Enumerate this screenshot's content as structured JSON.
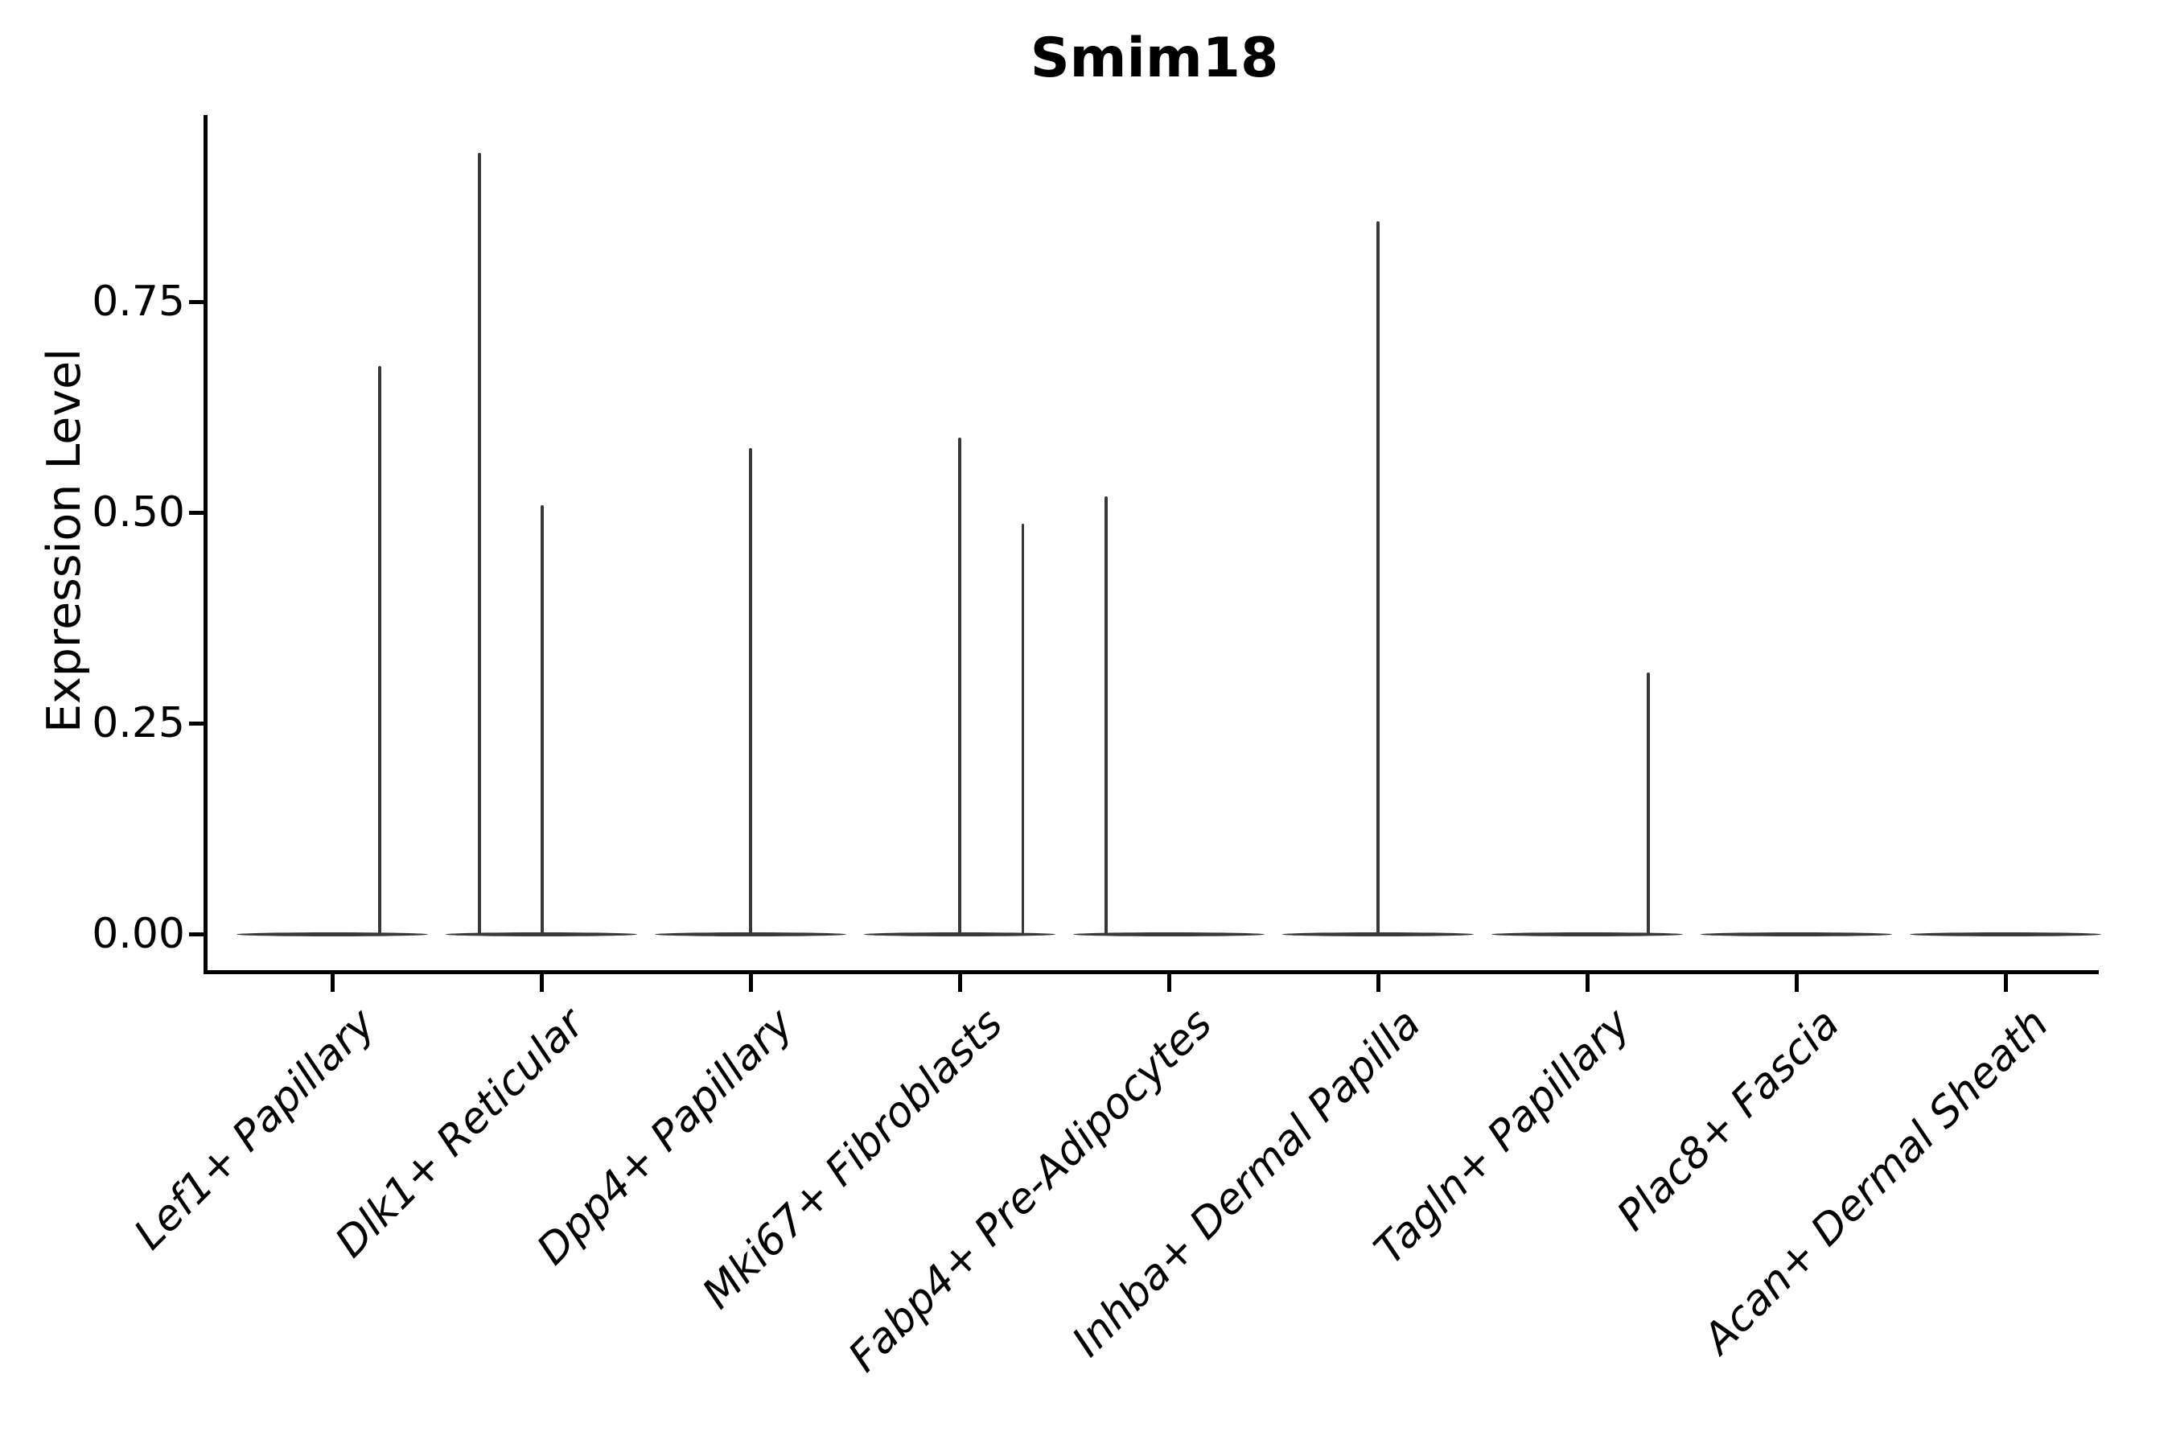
{
  "chart_data": {
    "type": "violin",
    "title": "Smim18",
    "xlabel": "",
    "ylabel": "Expression Level",
    "ytick_labels": [
      "0.00",
      "0.25",
      "0.50",
      "0.75"
    ],
    "ytick_values": [
      0,
      0.25,
      0.5,
      0.75
    ],
    "ylim": [
      -0.045,
      0.97
    ],
    "grid": false,
    "legend": "none",
    "categories": [
      "Lef1+ Papillary",
      "Dlk1+ Reticular",
      "Dpp4+ Papillary",
      "Mki67+ Fibroblasts",
      "Fabp4+ Pre-Adipocytes",
      "Inhba+ Dermal Papilla",
      "Tagln+ Papillary",
      "Plac8+ Fascia",
      "Acan+ Dermal Sheath"
    ],
    "violins": [
      {
        "category": "Lef1+ Papillary",
        "zero_mass_baseline": true,
        "spikes": [
          {
            "offset": 0.227,
            "value": 0.674
          }
        ]
      },
      {
        "category": "Dlk1+ Reticular",
        "zero_mass_baseline": true,
        "spikes": [
          {
            "offset": -0.297,
            "value": 0.927
          },
          {
            "offset": 0.003,
            "value": 0.509
          }
        ]
      },
      {
        "category": "Dpp4+ Papillary",
        "zero_mass_baseline": true,
        "spikes": [
          {
            "offset": 0.0,
            "value": 0.576
          }
        ]
      },
      {
        "category": "Mki67+ Fibroblasts",
        "zero_mass_baseline": true,
        "spikes": [
          {
            "offset": 0.0,
            "value": 0.589
          },
          {
            "offset": 0.302,
            "value": 0.487
          }
        ]
      },
      {
        "category": "Fabp4+ Pre-Adipocytes",
        "zero_mass_baseline": true,
        "spikes": [
          {
            "offset": -0.3,
            "value": 0.519
          }
        ]
      },
      {
        "category": "Inhba+ Dermal Papilla",
        "zero_mass_baseline": true,
        "spikes": [
          {
            "offset": 0.0,
            "value": 0.845
          }
        ]
      },
      {
        "category": "Tagln+ Papillary",
        "zero_mass_baseline": true,
        "spikes": [
          {
            "offset": 0.293,
            "value": 0.31
          }
        ]
      },
      {
        "category": "Plac8+ Fascia",
        "zero_mass_baseline": true,
        "spikes": []
      },
      {
        "category": "Acan+ Dermal Sheath",
        "zero_mass_baseline": true,
        "spikes": []
      }
    ],
    "colors": {
      "violin": "#383838",
      "axis": "#000000",
      "text": "#000000",
      "background": "#ffffff"
    }
  }
}
